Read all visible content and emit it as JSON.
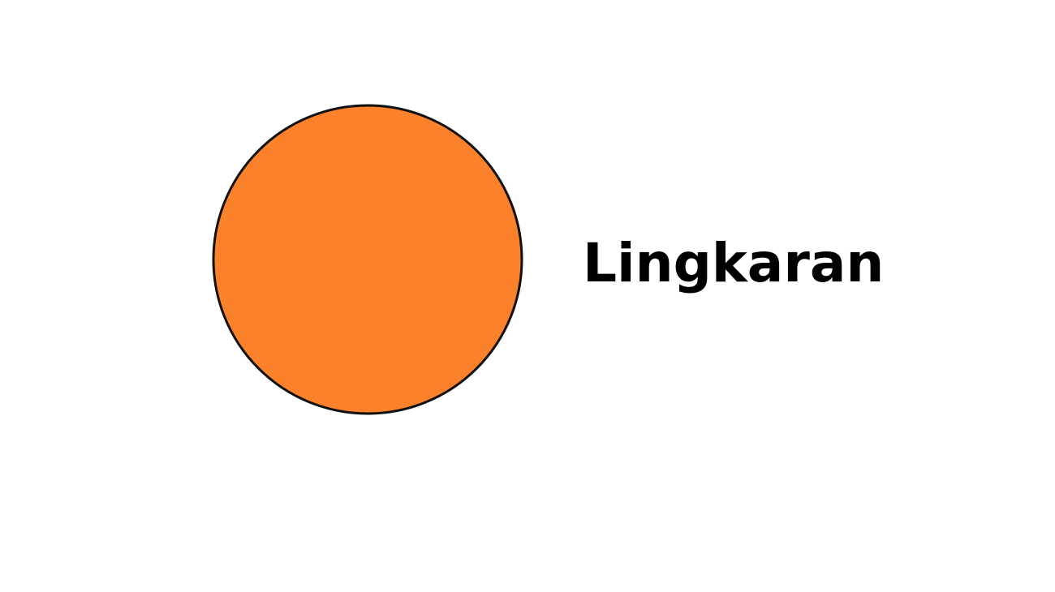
{
  "shape": {
    "kind": "circle",
    "name": "Lingkaran",
    "fill_color": "#FB822A",
    "stroke_color": "#111111"
  }
}
